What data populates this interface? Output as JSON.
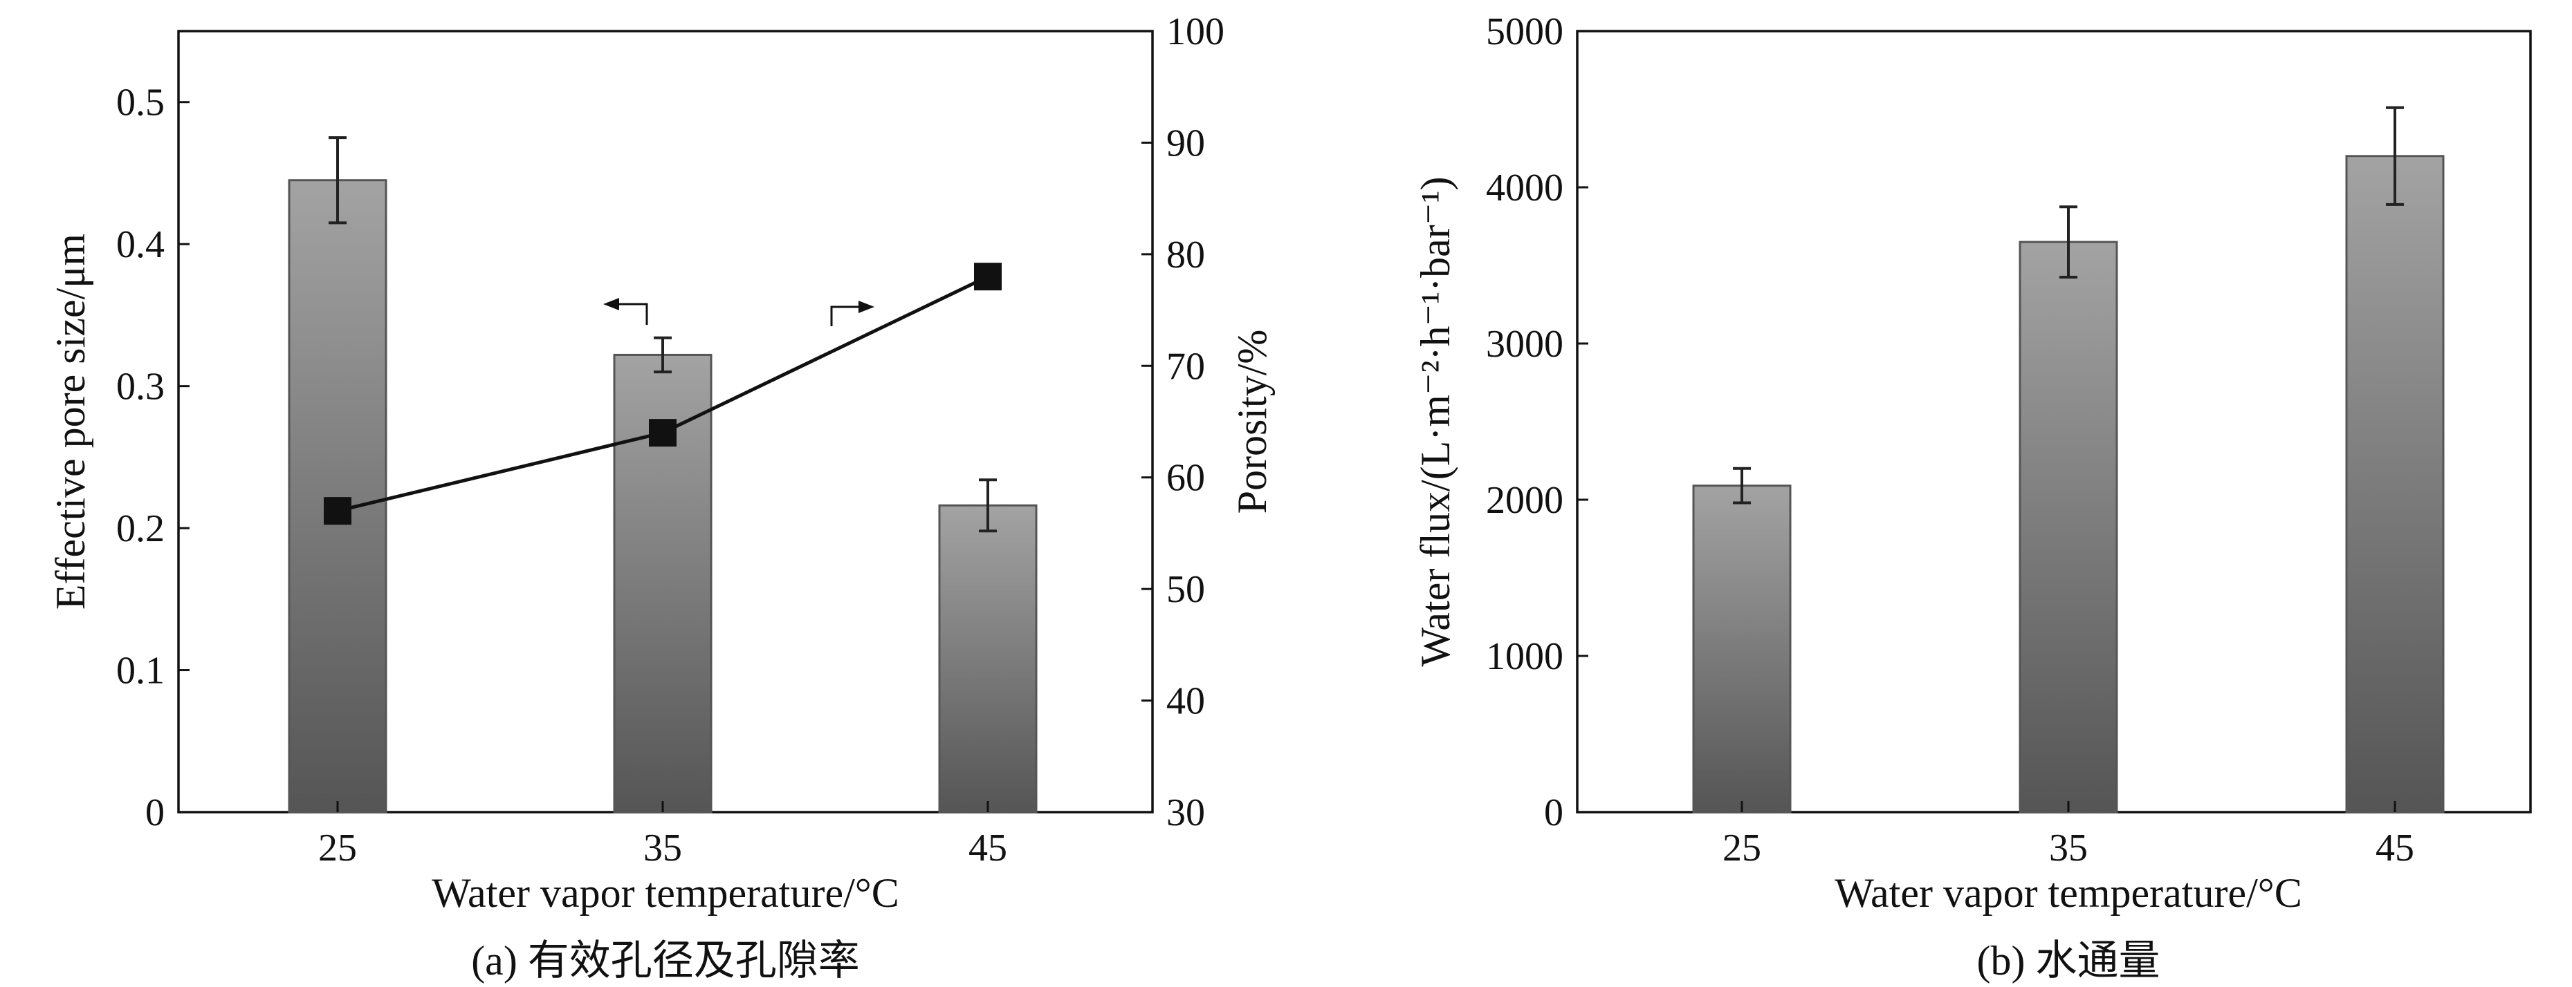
{
  "chart_data": [
    {
      "id": "a",
      "type": "bar",
      "caption": "(a) 有效孔径及孔隙率",
      "categories": [
        "25",
        "35",
        "45"
      ],
      "xlabel": "Water vapor temperature/°C",
      "ylabel": "Effective pore size/μm",
      "y2label": "Porosity/%",
      "ylim": [
        0,
        0.55
      ],
      "yticks": [
        "0",
        "0.1",
        "0.2",
        "0.3",
        "0.4",
        "0.5"
      ],
      "y2lim": [
        30,
        100
      ],
      "y2ticks": [
        "30",
        "40",
        "50",
        "60",
        "70",
        "80",
        "90",
        "100"
      ],
      "series": [
        {
          "name": "Effective pore size",
          "type": "bar",
          "axis": "left",
          "values": [
            0.445,
            0.322,
            0.216
          ],
          "errors": [
            0.03,
            0.012,
            0.018
          ]
        },
        {
          "name": "Porosity",
          "type": "line",
          "axis": "right",
          "marker": "square",
          "values": [
            57,
            64,
            78
          ]
        }
      ]
    },
    {
      "id": "b",
      "type": "bar",
      "caption": "(b) 水通量",
      "categories": [
        "25",
        "35",
        "45"
      ],
      "xlabel": "Water vapor temperature/°C",
      "ylabel": "Water flux/(L·m⁻²·h⁻¹·bar⁻¹)",
      "ylim": [
        0,
        5000
      ],
      "yticks": [
        "0",
        "1000",
        "2000",
        "3000",
        "4000",
        "5000"
      ],
      "series": [
        {
          "name": "Water flux",
          "type": "bar",
          "axis": "left",
          "values": [
            2090,
            3650,
            4200
          ],
          "errors": [
            110,
            225,
            310
          ]
        }
      ]
    }
  ],
  "colors": {
    "bar_top": "#a3a3a3",
    "bar_bottom": "#555555",
    "axis": "#111111",
    "marker": "#111111"
  }
}
